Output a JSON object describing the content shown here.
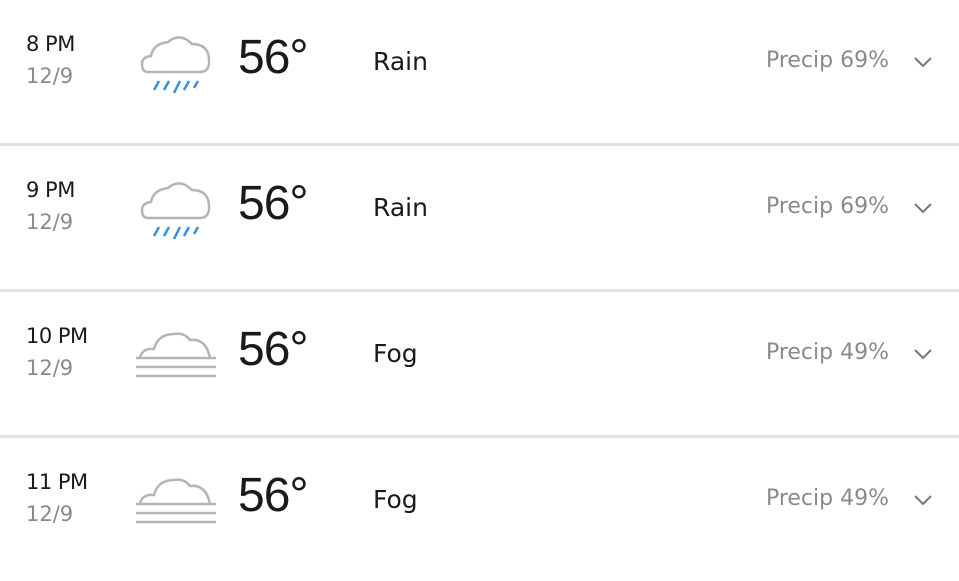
{
  "colors": {
    "rain": "#3a8fd9",
    "cloud": "#b5b5b5",
    "divider": "#e2e2e2"
  },
  "hours": [
    {
      "time": "8 PM",
      "date": "12/9",
      "icon": "rain-cloud-icon",
      "temp": "56°",
      "condition": "Rain",
      "precip": "Precip 69%"
    },
    {
      "time": "9 PM",
      "date": "12/9",
      "icon": "rain-cloud-icon",
      "temp": "56°",
      "condition": "Rain",
      "precip": "Precip 69%"
    },
    {
      "time": "10 PM",
      "date": "12/9",
      "icon": "fog-icon",
      "temp": "56°",
      "condition": "Fog",
      "precip": "Precip 49%"
    },
    {
      "time": "11 PM",
      "date": "12/9",
      "icon": "fog-icon",
      "temp": "56°",
      "condition": "Fog",
      "precip": "Precip 49%"
    }
  ]
}
